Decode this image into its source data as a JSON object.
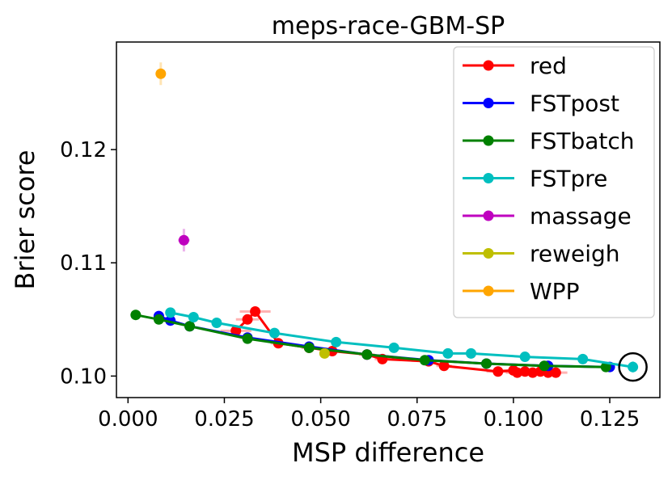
{
  "chart_data": {
    "type": "line",
    "title": "meps-race-GBM-SP",
    "xlabel": "MSP difference",
    "ylabel": "Brier score",
    "xlim": [
      -0.003,
      0.138
    ],
    "ylim": [
      0.0981,
      0.1295
    ],
    "xticks": [
      "0.000",
      "0.025",
      "0.050",
      "0.075",
      "0.100",
      "0.125"
    ],
    "xtick_values": [
      0.0,
      0.025,
      0.05,
      0.075,
      0.1,
      0.125
    ],
    "yticks": [
      "0.10",
      "0.11",
      "0.12"
    ],
    "ytick_values": [
      0.1,
      0.11,
      0.12
    ],
    "grid": false,
    "legend_position": "upper right",
    "highlight": {
      "label": "circled point",
      "x": 0.131,
      "y": 0.1008
    },
    "series": [
      {
        "name": "red",
        "color": "#ff0000",
        "points": [
          {
            "x": 0.028,
            "y": 0.104,
            "xerr": 0.004,
            "yerr": 0.0003
          },
          {
            "x": 0.031,
            "y": 0.105,
            "xerr": 0.003,
            "yerr": 0.0004
          },
          {
            "x": 0.033,
            "y": 0.1057,
            "xerr": 0.004,
            "yerr": 0.0004
          },
          {
            "x": 0.039,
            "y": 0.1029,
            "xerr": 0.002,
            "yerr": 0.0003
          },
          {
            "x": 0.047,
            "y": 0.1025,
            "xerr": 0.002,
            "yerr": 0.0003
          },
          {
            "x": 0.053,
            "y": 0.1022,
            "xerr": 0.002,
            "yerr": 0.0003
          },
          {
            "x": 0.062,
            "y": 0.1019,
            "xerr": 0.002,
            "yerr": 0.0003
          },
          {
            "x": 0.066,
            "y": 0.1015,
            "xerr": 0.002,
            "yerr": 0.0003
          },
          {
            "x": 0.078,
            "y": 0.1013,
            "xerr": 0.002,
            "yerr": 0.0003
          },
          {
            "x": 0.082,
            "y": 0.1009,
            "xerr": 0.002,
            "yerr": 0.0003
          },
          {
            "x": 0.096,
            "y": 0.1004,
            "xerr": 0.003,
            "yerr": 0.0003
          },
          {
            "x": 0.1,
            "y": 0.1005,
            "xerr": 0.003,
            "yerr": 0.0003
          },
          {
            "x": 0.101,
            "y": 0.1003,
            "xerr": 0.003,
            "yerr": 0.0003
          },
          {
            "x": 0.103,
            "y": 0.1004,
            "xerr": 0.003,
            "yerr": 0.0003
          },
          {
            "x": 0.105,
            "y": 0.1003,
            "xerr": 0.003,
            "yerr": 0.0003
          },
          {
            "x": 0.107,
            "y": 0.1004,
            "xerr": 0.003,
            "yerr": 0.0003
          },
          {
            "x": 0.109,
            "y": 0.1003,
            "xerr": 0.003,
            "yerr": 0.0003
          },
          {
            "x": 0.111,
            "y": 0.1003,
            "xerr": 0.003,
            "yerr": 0.0003
          }
        ]
      },
      {
        "name": "FSTpost",
        "color": "#0000ff",
        "points": [
          {
            "x": 0.008,
            "y": 0.1053,
            "xerr": 0.001,
            "yerr": 0.0003
          },
          {
            "x": 0.011,
            "y": 0.1049,
            "xerr": 0.001,
            "yerr": 0.0003
          },
          {
            "x": 0.016,
            "y": 0.1044,
            "xerr": 0.001,
            "yerr": 0.0003
          },
          {
            "x": 0.031,
            "y": 0.1034,
            "xerr": 0.001,
            "yerr": 0.0003
          },
          {
            "x": 0.047,
            "y": 0.1026,
            "xerr": 0.001,
            "yerr": 0.0003
          },
          {
            "x": 0.062,
            "y": 0.1019,
            "xerr": 0.001,
            "yerr": 0.0003
          },
          {
            "x": 0.078,
            "y": 0.1014,
            "xerr": 0.001,
            "yerr": 0.0003
          },
          {
            "x": 0.093,
            "y": 0.1011,
            "xerr": 0.001,
            "yerr": 0.0003
          },
          {
            "x": 0.109,
            "y": 0.1009,
            "xerr": 0.001,
            "yerr": 0.0003
          },
          {
            "x": 0.125,
            "y": 0.1008,
            "xerr": 0.001,
            "yerr": 0.0003
          }
        ]
      },
      {
        "name": "FSTbatch",
        "color": "#008000",
        "points": [
          {
            "x": 0.002,
            "y": 0.1054,
            "xerr": 0.001,
            "yerr": 0.0003
          },
          {
            "x": 0.008,
            "y": 0.105,
            "xerr": 0.001,
            "yerr": 0.0003
          },
          {
            "x": 0.016,
            "y": 0.1044,
            "xerr": 0.001,
            "yerr": 0.0003
          },
          {
            "x": 0.031,
            "y": 0.1033,
            "xerr": 0.001,
            "yerr": 0.0003
          },
          {
            "x": 0.047,
            "y": 0.1025,
            "xerr": 0.001,
            "yerr": 0.0003
          },
          {
            "x": 0.062,
            "y": 0.1019,
            "xerr": 0.001,
            "yerr": 0.0003
          },
          {
            "x": 0.077,
            "y": 0.1014,
            "xerr": 0.001,
            "yerr": 0.0003
          },
          {
            "x": 0.093,
            "y": 0.1011,
            "xerr": 0.001,
            "yerr": 0.0003
          },
          {
            "x": 0.108,
            "y": 0.1009,
            "xerr": 0.001,
            "yerr": 0.0003
          },
          {
            "x": 0.124,
            "y": 0.1008,
            "xerr": 0.001,
            "yerr": 0.0003
          }
        ]
      },
      {
        "name": "FSTpre",
        "color": "#00bfbf",
        "points": [
          {
            "x": 0.011,
            "y": 0.1056,
            "xerr": 0.001,
            "yerr": 0.0003
          },
          {
            "x": 0.017,
            "y": 0.1052,
            "xerr": 0.001,
            "yerr": 0.0003
          },
          {
            "x": 0.023,
            "y": 0.1047,
            "xerr": 0.001,
            "yerr": 0.0003
          },
          {
            "x": 0.038,
            "y": 0.1038,
            "xerr": 0.001,
            "yerr": 0.0003
          },
          {
            "x": 0.054,
            "y": 0.103,
            "xerr": 0.001,
            "yerr": 0.0003
          },
          {
            "x": 0.069,
            "y": 0.1025,
            "xerr": 0.001,
            "yerr": 0.0003
          },
          {
            "x": 0.083,
            "y": 0.102,
            "xerr": 0.001,
            "yerr": 0.0003
          },
          {
            "x": 0.089,
            "y": 0.102,
            "xerr": 0.001,
            "yerr": 0.0003
          },
          {
            "x": 0.103,
            "y": 0.1017,
            "xerr": 0.001,
            "yerr": 0.0003
          },
          {
            "x": 0.118,
            "y": 0.1015,
            "xerr": 0.001,
            "yerr": 0.0003
          },
          {
            "x": 0.131,
            "y": 0.1008,
            "xerr": 0.001,
            "yerr": 0.0005
          }
        ]
      },
      {
        "name": "massage",
        "color": "#bf00bf",
        "points": [
          {
            "x": 0.0145,
            "y": 0.112,
            "xerr": 0.0015,
            "yerr": 0.001
          }
        ]
      },
      {
        "name": "reweigh",
        "color": "#bfbf00",
        "points": [
          {
            "x": 0.051,
            "y": 0.102,
            "xerr": 0.001,
            "yerr": 0.0003
          }
        ]
      },
      {
        "name": "WPP",
        "color": "#ffa500",
        "points": [
          {
            "x": 0.0085,
            "y": 0.1267,
            "xerr": 0.0008,
            "yerr": 0.001
          }
        ]
      }
    ]
  }
}
